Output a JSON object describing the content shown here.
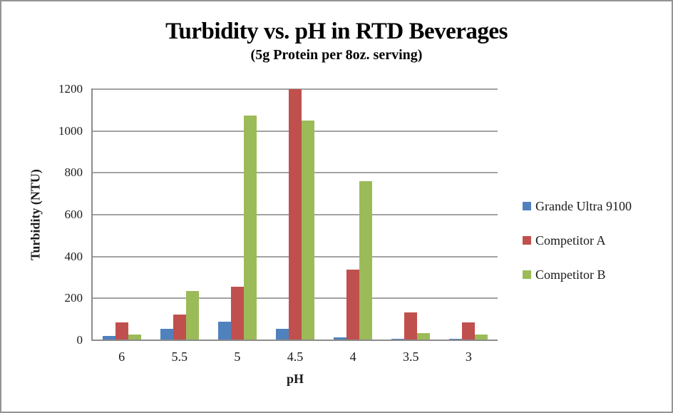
{
  "chart_data": {
    "type": "bar",
    "title": "Turbidity vs. pH in RTD Beverages",
    "subtitle": "(5g Protein per 8oz. serving)",
    "xlabel": "pH",
    "ylabel": "Turbidity (NTU)",
    "categories": [
      "6",
      "5.5",
      "5",
      "4.5",
      "4",
      "3.5",
      "3"
    ],
    "series": [
      {
        "name": "Grande Ultra 9100",
        "color": "#4F81BD",
        "values": [
          20,
          53,
          90,
          55,
          15,
          8,
          5
        ]
      },
      {
        "name": "Competitor A",
        "color": "#C0504D",
        "values": [
          85,
          122,
          257,
          1200,
          338,
          133,
          85
        ]
      },
      {
        "name": "Competitor B",
        "color": "#9BBB59",
        "values": [
          28,
          235,
          1075,
          1050,
          760,
          33,
          27
        ]
      }
    ],
    "ylim": [
      0,
      1200
    ],
    "yticks": [
      0,
      200,
      400,
      600,
      800,
      1000,
      1200
    ],
    "grid": true,
    "legend_position": "right",
    "colors": {
      "gridline": "#A3A3A3",
      "axis": "#8C8C8C",
      "frame_border": "#949494"
    }
  }
}
